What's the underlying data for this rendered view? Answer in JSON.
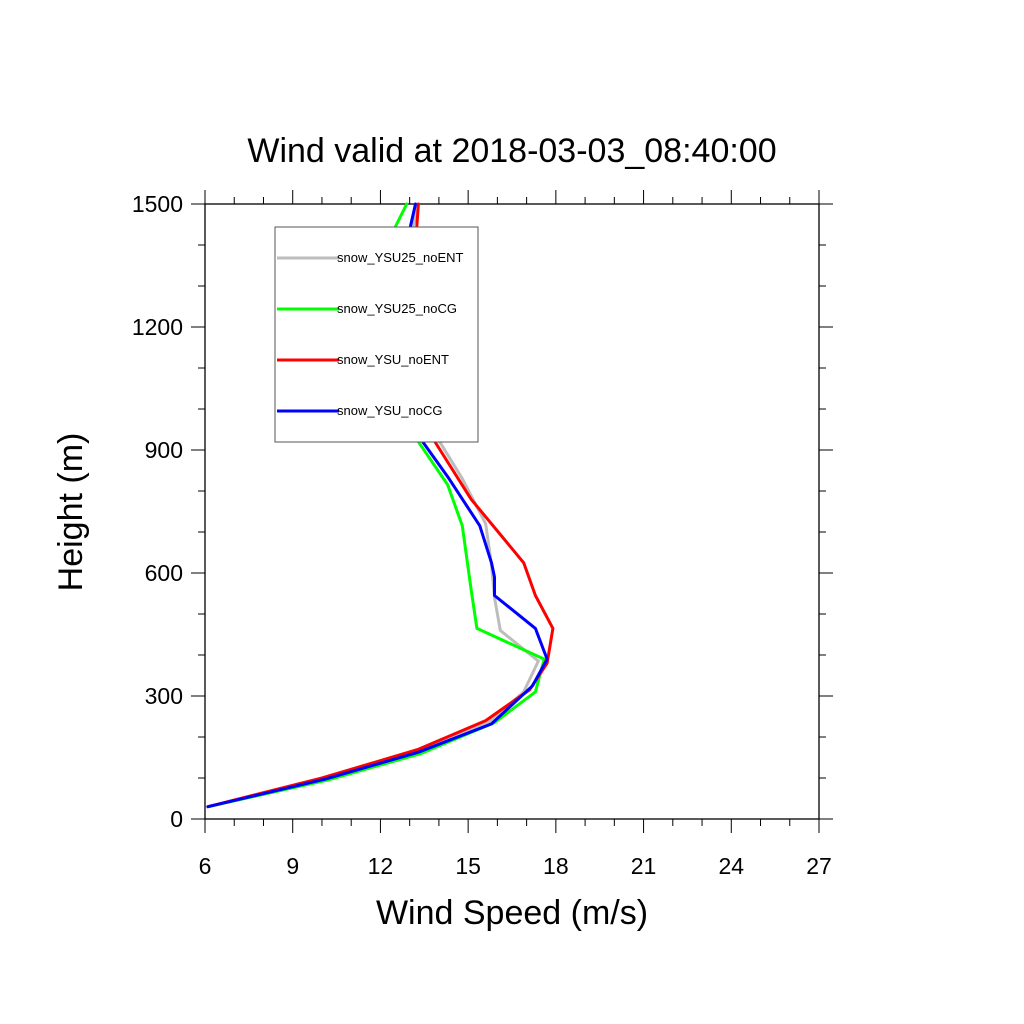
{
  "chart_data": {
    "type": "line",
    "title": "Wind valid at 2018-03-03_08:40:00",
    "xlabel": "Wind Speed (m/s)",
    "ylabel": "Height (m)",
    "xlim": [
      6,
      27
    ],
    "ylim": [
      0,
      1500
    ],
    "x_ticks": [
      "6",
      "9",
      "12",
      "15",
      "18",
      "21",
      "24",
      "27"
    ],
    "y_ticks": [
      "0",
      "300",
      "600",
      "900",
      "1200",
      "1500"
    ],
    "grid": false,
    "legend_position": "top-left",
    "series": [
      {
        "name": "snow_YSU25_noENT",
        "color": "#bdbdbd",
        "points": [
          [
            6.1,
            30
          ],
          [
            10.1,
            95
          ],
          [
            13.2,
            165
          ],
          [
            15.7,
            235
          ],
          [
            16.9,
            310
          ],
          [
            17.4,
            385
          ],
          [
            16.1,
            460
          ],
          [
            15.9,
            540
          ],
          [
            15.8,
            620
          ],
          [
            15.6,
            720
          ],
          [
            14.8,
            830
          ],
          [
            13.9,
            935
          ],
          [
            13.0,
            1030
          ],
          [
            12.8,
            1100
          ],
          [
            12.6,
            1170
          ],
          [
            12.5,
            1220
          ],
          [
            12.6,
            1290
          ],
          [
            12.9,
            1380
          ],
          [
            13.3,
            1500
          ]
        ]
      },
      {
        "name": "snow_YSU25_noCG",
        "color": "#00ff00",
        "points": [
          [
            6.1,
            30
          ],
          [
            10.2,
            95
          ],
          [
            13.4,
            160
          ],
          [
            15.9,
            235
          ],
          [
            17.3,
            310
          ],
          [
            17.6,
            390
          ],
          [
            15.3,
            465
          ],
          [
            15.1,
            560
          ],
          [
            14.8,
            715
          ],
          [
            14.3,
            815
          ],
          [
            13.3,
            920
          ],
          [
            12.3,
            1030
          ],
          [
            11.5,
            1120
          ],
          [
            11.3,
            1190
          ],
          [
            11.4,
            1300
          ],
          [
            12.2,
            1400
          ],
          [
            12.9,
            1500
          ]
        ]
      },
      {
        "name": "snow_YSU_noENT",
        "color": "#ff0000",
        "points": [
          [
            6.1,
            30
          ],
          [
            10.0,
            100
          ],
          [
            13.3,
            170
          ],
          [
            15.6,
            240
          ],
          [
            17.1,
            315
          ],
          [
            17.7,
            380
          ],
          [
            17.9,
            465
          ],
          [
            17.3,
            545
          ],
          [
            16.9,
            625
          ],
          [
            15.1,
            780
          ],
          [
            13.6,
            950
          ],
          [
            13.1,
            1040
          ],
          [
            12.8,
            1110
          ],
          [
            12.8,
            1200
          ],
          [
            12.9,
            1270
          ],
          [
            13.0,
            1300
          ],
          [
            13.2,
            1400
          ],
          [
            13.3,
            1500
          ]
        ]
      },
      {
        "name": "snow_YSU_noCG",
        "color": "#0000ff",
        "points": [
          [
            6.1,
            30
          ],
          [
            10.1,
            97
          ],
          [
            13.3,
            163
          ],
          [
            15.8,
            232
          ],
          [
            17.2,
            325
          ],
          [
            17.7,
            390
          ],
          [
            17.3,
            465
          ],
          [
            15.9,
            545
          ],
          [
            15.9,
            590
          ],
          [
            15.8,
            625
          ],
          [
            15.4,
            715
          ],
          [
            14.3,
            835
          ],
          [
            13.3,
            935
          ],
          [
            12.4,
            1040
          ],
          [
            11.7,
            1110
          ],
          [
            11.5,
            1190
          ],
          [
            11.6,
            1230
          ],
          [
            11.8,
            1300
          ],
          [
            12.2,
            1360
          ],
          [
            12.9,
            1405
          ],
          [
            13.2,
            1500
          ]
        ]
      }
    ]
  }
}
